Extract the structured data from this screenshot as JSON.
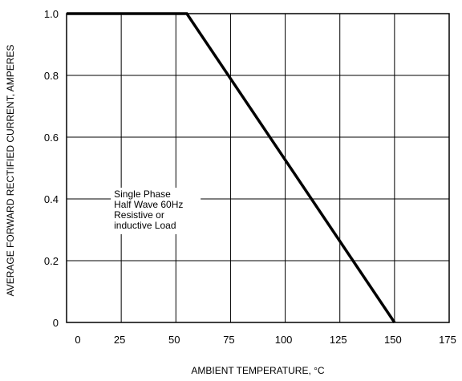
{
  "chart_data": {
    "type": "line",
    "title": "",
    "xlabel": "AMBIENT TEMPERATURE,  °C",
    "ylabel": "AVERAGE FORWARD RECTIFIED CURRENT, AMPERES",
    "xlim": [
      0,
      175
    ],
    "ylim": [
      0,
      1.0
    ],
    "x_ticks": [
      0,
      25,
      50,
      75,
      100,
      125,
      150,
      175
    ],
    "x_tick_labels": [
      "0",
      "25",
      "50",
      "75",
      "100",
      "125",
      "150",
      "175"
    ],
    "y_ticks": [
      0,
      0.2,
      0.4,
      0.6,
      0.8,
      1.0
    ],
    "y_tick_labels": [
      "0",
      "0.2",
      "0.4",
      "0.6",
      "0.8",
      "1.0"
    ],
    "grid": true,
    "series": [
      {
        "x": [
          0,
          55,
          150
        ],
        "y": [
          1.0,
          1.0,
          0
        ]
      }
    ],
    "annotation": {
      "lines": [
        "Single Phase",
        "Half Wave 60Hz",
        "Resistive or",
        "inductive Load"
      ],
      "x": 25,
      "y": 0.4
    }
  }
}
